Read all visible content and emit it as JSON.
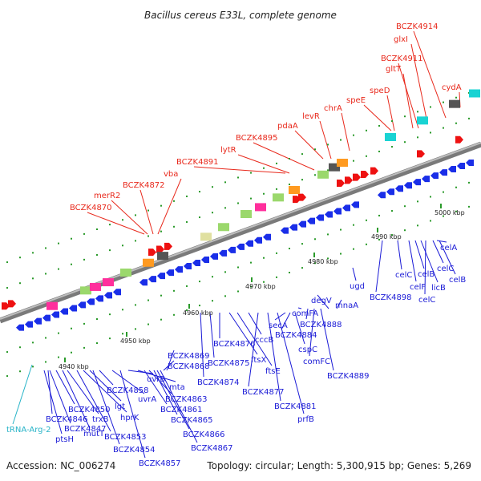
{
  "title": "Bacillus cereus E33L, complete genome",
  "footer": {
    "accession": "Accession: NC_006274",
    "summary": "Topology: circular; Length: 5,300,915 bp; Genes: 5,269"
  },
  "colors": {
    "upper_labels": "#e8291c",
    "lower_labels": "#1a1ad6",
    "trna_label": "#28b4c8",
    "backbone": "#7a7a7a",
    "forward_arrow": "#ee1111",
    "reverse_arrow": "#1a2ee8",
    "ticks": "#2a9a2a"
  },
  "ticks": [
    "4940 kbp",
    "4950 kbp",
    "4960 kbp",
    "4970 kbp",
    "4980 kbp",
    "4990 kbp",
    "5000 kbp"
  ],
  "upper_labels": [
    "BCZK4870",
    "merR2",
    "BCZK4872",
    "vba",
    "BCZK4891",
    "lytR",
    "BCZK4895",
    "pdaA",
    "levR",
    "chrA",
    "speE",
    "speD",
    "gltT",
    "BCZK4911",
    "glxI",
    "BCZK4914",
    "cydA"
  ],
  "lower_labels": [
    "tRNA-Arg-2",
    "ptsH",
    "BCZK4846",
    "BCZK4847",
    "BCZK4850",
    "mutT",
    "trxB",
    "BCZK4853",
    "hprK",
    "lgt",
    "BCZK4854",
    "BCZK4858",
    "uvrA",
    "BCZK4857",
    "uvrB",
    "mta",
    "BCZK4861",
    "BCZK4863",
    "BCZK4865",
    "BCZK4866",
    "BCZK4867",
    "BCZK4868",
    "BCZK4869",
    "BCZK4874",
    "BCZK4875",
    "BCZK4876",
    "ftsX",
    "ftsE",
    "cccB",
    "BCZK4877",
    "BCZK4881",
    "prfB",
    "secA",
    "BCZK4884",
    "cspC",
    "comFA",
    "BCZK4888",
    "comFC",
    "BCZK4889",
    "degV",
    "mnaA",
    "ugd",
    "BCZK4898",
    "celC",
    "celF",
    "celB",
    "licB",
    "celC",
    "celA",
    "celC",
    "celB"
  ]
}
